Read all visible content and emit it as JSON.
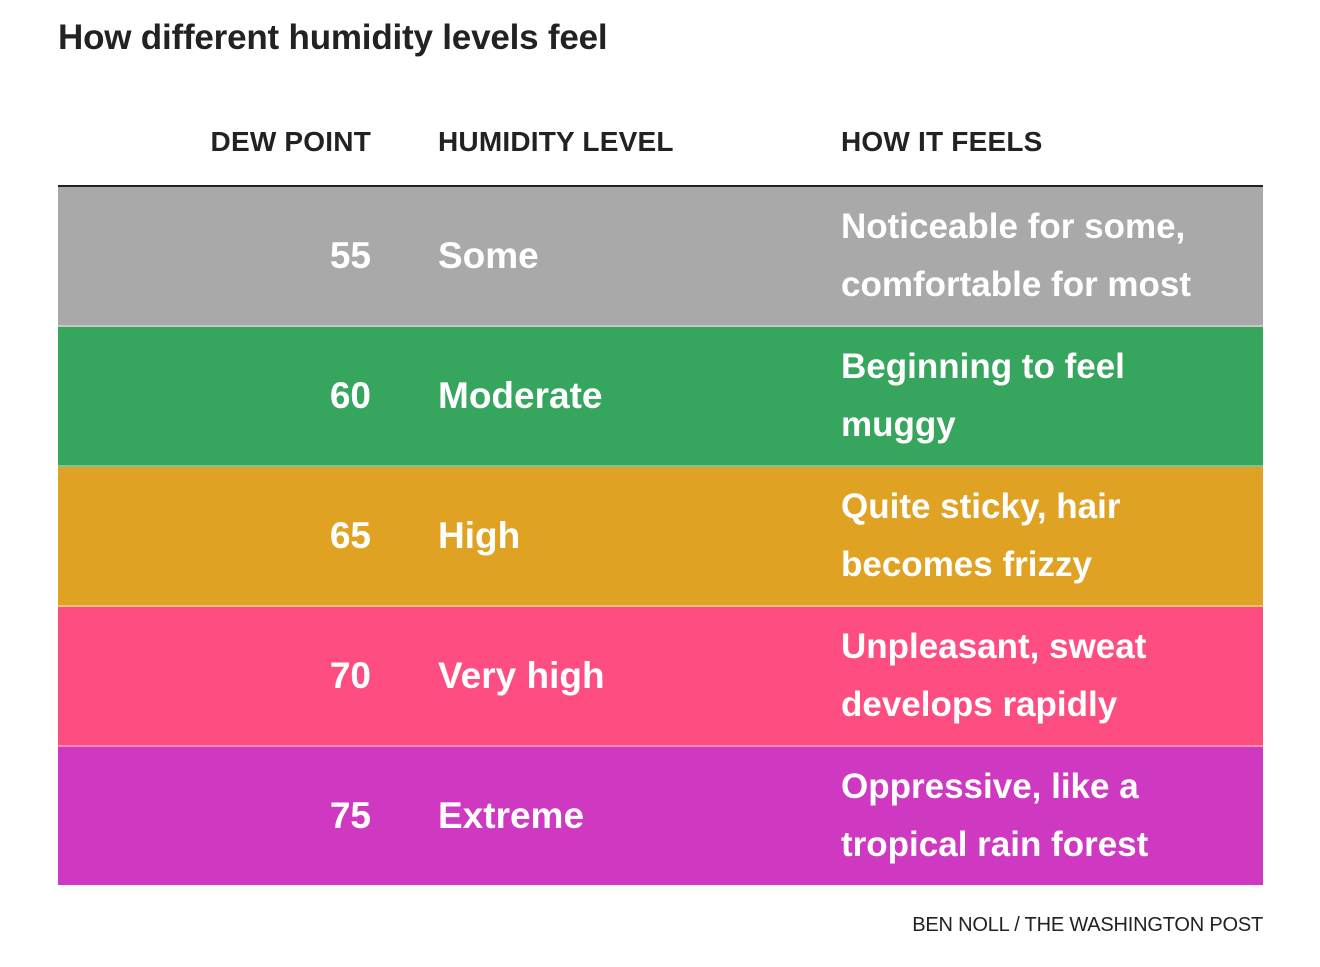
{
  "title": "How different humidity levels feel",
  "credit": "BEN NOLL / THE WASHINGTON POST",
  "chart_data": {
    "type": "table",
    "title": "How different humidity levels feel",
    "columns": [
      "DEW POINT",
      "HUMIDITY LEVEL",
      "HOW IT FEELS"
    ],
    "rows": [
      {
        "dew_point": "55",
        "humidity_level": "Some",
        "feels": [
          "Noticeable for some,",
          "comfortable for most"
        ],
        "color": "#a9a9a9"
      },
      {
        "dew_point": "60",
        "humidity_level": "Moderate",
        "feels": [
          "Beginning to feel",
          "muggy"
        ],
        "color": "#36a55e"
      },
      {
        "dew_point": "65",
        "humidity_level": "High",
        "feels": [
          "Quite sticky, hair",
          "becomes frizzy"
        ],
        "color": "#e0a222"
      },
      {
        "dew_point": "70",
        "humidity_level": "Very high",
        "feels": [
          "Unpleasant, sweat",
          "develops rapidly"
        ],
        "color": "#fd4d81"
      },
      {
        "dew_point": "75",
        "humidity_level": "Extreme",
        "feels": [
          "Oppressive, like a",
          "tropical rain forest"
        ],
        "color": "#cf38c0"
      }
    ]
  }
}
